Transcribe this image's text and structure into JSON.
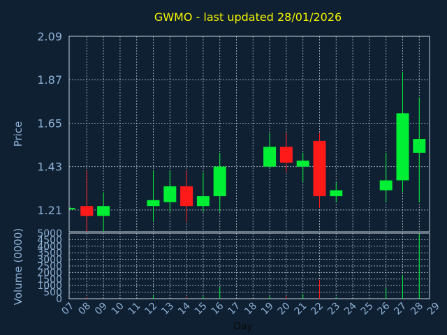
{
  "colors": {
    "up": "#00ee33",
    "down": "#ff1a1a",
    "background": "#0f2033",
    "title": "#f5f500",
    "axis_text": "#8eb1d4"
  },
  "chart_data": {
    "type": "candlestick",
    "title": "GWMO - last updated 28/01/2026",
    "xlabel": "Day",
    "categories": [
      "07",
      "08",
      "09",
      "10",
      "11",
      "12",
      "13",
      "14",
      "15",
      "16",
      "17",
      "18",
      "19",
      "20",
      "21",
      "22",
      "23",
      "24",
      "25",
      "26",
      "27",
      "28",
      "29"
    ],
    "price": {
      "ylabel": "Price",
      "ylim": [
        1.1,
        2.09
      ],
      "ticks": [
        "2.09",
        "1.87",
        "1.65",
        "1.43",
        "1.21"
      ],
      "candles": [
        {
          "day": "07",
          "open": 1.22,
          "high": 1.225,
          "low": 1.215,
          "close": 1.22
        },
        {
          "day": "08",
          "open": 1.23,
          "high": 1.41,
          "low": 1.1,
          "close": 1.18
        },
        {
          "day": "09",
          "open": 1.18,
          "high": 1.3,
          "low": 1.1,
          "close": 1.23
        },
        {
          "day": "12",
          "open": 1.23,
          "high": 1.41,
          "low": 1.15,
          "close": 1.26
        },
        {
          "day": "13",
          "open": 1.25,
          "high": 1.41,
          "low": 1.2,
          "close": 1.33
        },
        {
          "day": "14",
          "open": 1.33,
          "high": 1.41,
          "low": 1.15,
          "close": 1.23
        },
        {
          "day": "15",
          "open": 1.23,
          "high": 1.4,
          "low": 1.2,
          "close": 1.28
        },
        {
          "day": "16",
          "open": 1.28,
          "high": 1.5,
          "low": 1.2,
          "close": 1.43
        },
        {
          "day": "19",
          "open": 1.43,
          "high": 1.6,
          "low": 1.42,
          "close": 1.53
        },
        {
          "day": "20",
          "open": 1.53,
          "high": 1.6,
          "low": 1.4,
          "close": 1.45
        },
        {
          "day": "21",
          "open": 1.43,
          "high": 1.5,
          "low": 1.35,
          "close": 1.46
        },
        {
          "day": "22",
          "open": 1.56,
          "high": 1.6,
          "low": 1.22,
          "close": 1.28
        },
        {
          "day": "23",
          "open": 1.28,
          "high": 1.35,
          "low": 1.25,
          "close": 1.31
        },
        {
          "day": "26",
          "open": 1.31,
          "high": 1.5,
          "low": 1.25,
          "close": 1.36
        },
        {
          "day": "27",
          "open": 1.36,
          "high": 1.91,
          "low": 1.3,
          "close": 1.7
        },
        {
          "day": "28",
          "open": 1.5,
          "high": 1.78,
          "low": 1.25,
          "close": 1.57
        }
      ]
    },
    "volume": {
      "ylabel": "Volume (0000)",
      "ylim": [
        0,
        5000
      ],
      "ticks": [
        "5000",
        "4500",
        "4000",
        "3500",
        "3000",
        "2500",
        "2000",
        "1500",
        "1000",
        "500",
        "0"
      ],
      "bars": [
        {
          "day": "08",
          "value": 120,
          "direction": "down"
        },
        {
          "day": "12",
          "value": 250,
          "direction": "up"
        },
        {
          "day": "14",
          "value": 150,
          "direction": "down"
        },
        {
          "day": "15",
          "value": 180,
          "direction": "up"
        },
        {
          "day": "16",
          "value": 900,
          "direction": "up"
        },
        {
          "day": "19",
          "value": 200,
          "direction": "up"
        },
        {
          "day": "20",
          "value": 200,
          "direction": "down"
        },
        {
          "day": "21",
          "value": 350,
          "direction": "up"
        },
        {
          "day": "22",
          "value": 1450,
          "direction": "down"
        },
        {
          "day": "23",
          "value": 120,
          "direction": "up"
        },
        {
          "day": "26",
          "value": 850,
          "direction": "up"
        },
        {
          "day": "27",
          "value": 1800,
          "direction": "up"
        },
        {
          "day": "28",
          "value": 4950,
          "direction": "up"
        }
      ]
    }
  }
}
